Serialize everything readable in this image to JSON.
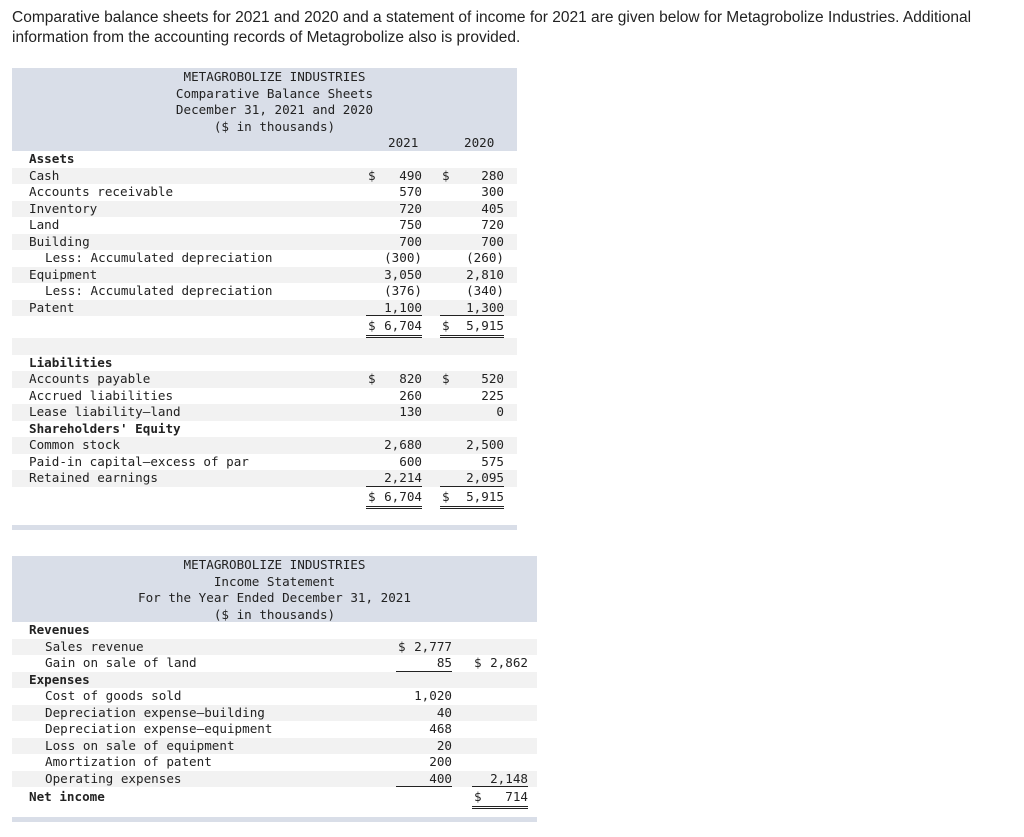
{
  "intro": "Comparative balance sheets for 2021 and 2020 and a statement of income for 2021 are given below for Metagrobolize Industries. Additional information from the accounting records of Metagrobolize also is provided.",
  "balance": {
    "title": [
      "METAGROBOLIZE INDUSTRIES",
      "Comparative Balance Sheets",
      "December 31, 2021 and 2020",
      "($ in thousands)"
    ],
    "columns": [
      "2021",
      "2020"
    ],
    "rows": [
      {
        "label": "Assets",
        "bold": true,
        "cells": []
      },
      {
        "label": "Cash",
        "cells": [
          {
            "d": "$",
            "v": "490"
          },
          {
            "d": "$",
            "v": "280"
          }
        ]
      },
      {
        "label": "Accounts receivable",
        "cells": [
          {
            "v": "570"
          },
          {
            "v": "300"
          }
        ]
      },
      {
        "label": "Inventory",
        "cells": [
          {
            "v": "720"
          },
          {
            "v": "405"
          }
        ]
      },
      {
        "label": "Land",
        "cells": [
          {
            "v": "750"
          },
          {
            "v": "720"
          }
        ]
      },
      {
        "label": "Building",
        "cells": [
          {
            "v": "700"
          },
          {
            "v": "700"
          }
        ]
      },
      {
        "label": "Less: Accumulated depreciation",
        "indent": true,
        "cells": [
          {
            "v": "(300)"
          },
          {
            "v": "(260)"
          }
        ]
      },
      {
        "label": "Equipment",
        "cells": [
          {
            "v": "3,050"
          },
          {
            "v": "2,810"
          }
        ]
      },
      {
        "label": "Less: Accumulated depreciation",
        "indent": true,
        "cells": [
          {
            "v": "(376)"
          },
          {
            "v": "(340)"
          }
        ]
      },
      {
        "label": "Patent",
        "cells": [
          {
            "v": "1,100",
            "u": 1
          },
          {
            "v": "1,300",
            "u": 1
          }
        ]
      },
      {
        "label": "",
        "total": true,
        "cells": [
          {
            "d": "$",
            "v": "6,704",
            "u": 2
          },
          {
            "d": "$",
            "v": "5,915",
            "u": 2
          }
        ]
      },
      {
        "label": "",
        "cells": []
      },
      {
        "label": "Liabilities",
        "bold": true,
        "cells": []
      },
      {
        "label": "Accounts payable",
        "cells": [
          {
            "d": "$",
            "v": "820"
          },
          {
            "d": "$",
            "v": "520"
          }
        ]
      },
      {
        "label": "Accrued liabilities",
        "cells": [
          {
            "v": "260"
          },
          {
            "v": "225"
          }
        ]
      },
      {
        "label": "Lease liability–land",
        "cells": [
          {
            "v": "130"
          },
          {
            "v": "0"
          }
        ]
      },
      {
        "label": "Shareholders' Equity",
        "bold": true,
        "cells": []
      },
      {
        "label": "Common stock",
        "cells": [
          {
            "v": "2,680"
          },
          {
            "v": "2,500"
          }
        ]
      },
      {
        "label": "Paid-in capital–excess of par",
        "cells": [
          {
            "v": "600"
          },
          {
            "v": "575"
          }
        ]
      },
      {
        "label": "Retained earnings",
        "cells": [
          {
            "v": "2,214",
            "u": 1
          },
          {
            "v": "2,095",
            "u": 1
          }
        ]
      },
      {
        "label": "",
        "total": true,
        "cells": [
          {
            "d": "$",
            "v": "6,704",
            "u": 2
          },
          {
            "d": "$",
            "v": "5,915",
            "u": 2
          }
        ]
      }
    ]
  },
  "income": {
    "title": [
      "METAGROBOLIZE INDUSTRIES",
      "Income Statement",
      "For the Year Ended December 31, 2021",
      "($ in thousands)"
    ],
    "rows": [
      {
        "label": "Revenues",
        "bold": true,
        "cells": []
      },
      {
        "label": "Sales revenue",
        "indent": true,
        "cells": [
          {
            "d": "$",
            "v": "2,777"
          },
          null
        ]
      },
      {
        "label": "Gain on sale of land",
        "indent": true,
        "cells": [
          {
            "v": "85",
            "u": 1
          },
          {
            "d": "$",
            "v": "2,862"
          }
        ]
      },
      {
        "label": "Expenses",
        "bold": true,
        "cells": []
      },
      {
        "label": "Cost of goods sold",
        "indent": true,
        "cells": [
          {
            "v": "1,020"
          },
          null
        ]
      },
      {
        "label": "Depreciation expense–building",
        "indent": true,
        "cells": [
          {
            "v": "40"
          },
          null
        ]
      },
      {
        "label": "Depreciation expense–equipment",
        "indent": true,
        "cells": [
          {
            "v": "468"
          },
          null
        ]
      },
      {
        "label": "Loss on sale of equipment",
        "indent": true,
        "cells": [
          {
            "v": "20"
          },
          null
        ]
      },
      {
        "label": "Amortization of patent",
        "indent": true,
        "cells": [
          {
            "v": "200"
          },
          null
        ]
      },
      {
        "label": "Operating expenses",
        "indent": true,
        "cells": [
          {
            "v": "400",
            "u": 1
          },
          {
            "v": "2,148",
            "u": 1
          }
        ]
      },
      {
        "label": "Net income",
        "bold": true,
        "total": true,
        "cells": [
          null,
          {
            "d": "$",
            "v": "714",
            "u": 2
          }
        ]
      }
    ]
  }
}
